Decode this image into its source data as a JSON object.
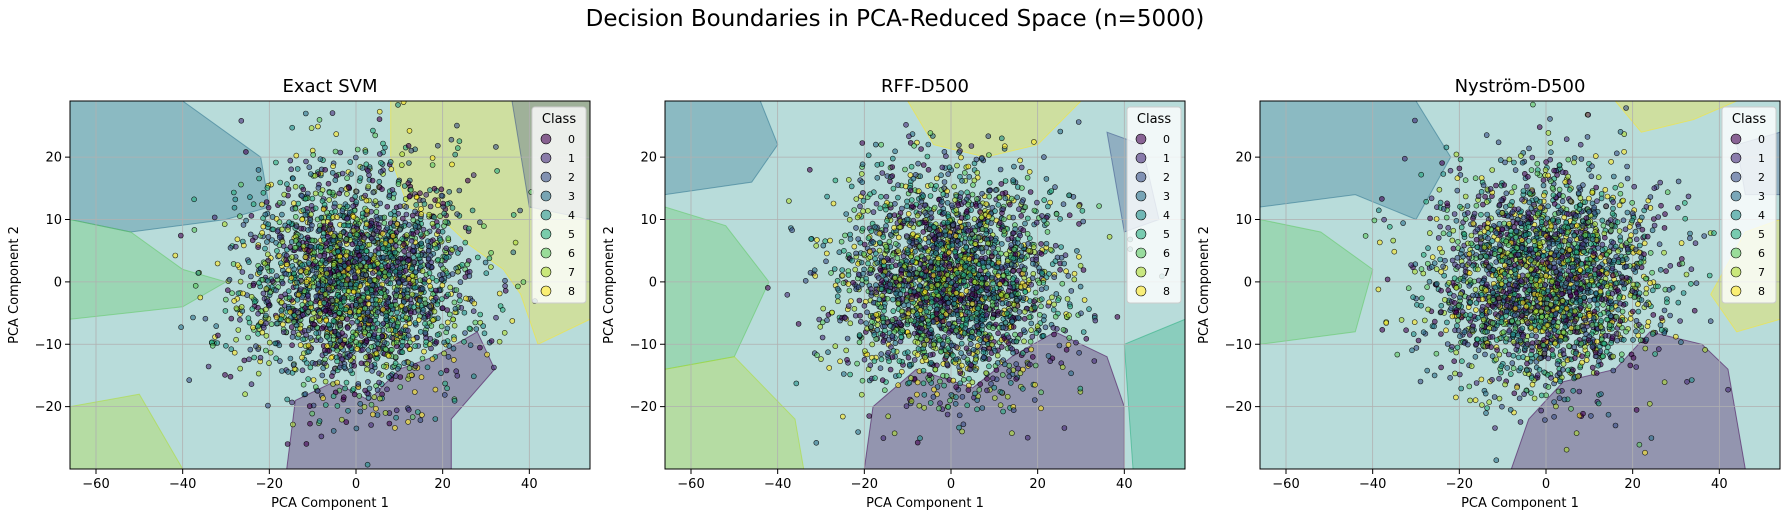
{
  "suptitle": "Decision Boundaries in PCA-Reduced Space (n=5000)",
  "class_colors": [
    "#440154",
    "#472d7b",
    "#3b528b",
    "#2c728e",
    "#21918c",
    "#28ae80",
    "#5ec962",
    "#addc30",
    "#fde725"
  ],
  "chart_data": [
    {
      "type": "scatter",
      "title": "Exact SVM",
      "xlabel": "PCA Component 1",
      "ylabel": "PCA Component 2",
      "xlim": [
        -66,
        54
      ],
      "ylim": [
        -30,
        29
      ],
      "xticks": [
        -60,
        -40,
        -20,
        0,
        20,
        40
      ],
      "yticks": [
        -20,
        -10,
        0,
        10,
        20
      ],
      "grid": true,
      "legend": {
        "title": "Class",
        "placement": "top-right",
        "entries": [
          "0",
          "1",
          "2",
          "3",
          "4",
          "5",
          "6",
          "7",
          "8"
        ]
      },
      "n_points": 5000,
      "point_distribution": {
        "center": [
          0,
          0
        ],
        "std": [
          13,
          9
        ]
      },
      "decision_regions": [
        {
          "class": 0,
          "polygon": [
            [
              -16,
              -30
            ],
            [
              -14,
              -19
            ],
            [
              -5,
              -16
            ],
            [
              3,
              -19
            ],
            [
              10,
              -14
            ],
            [
              18,
              -12
            ],
            [
              28,
              -8
            ],
            [
              32,
              -14
            ],
            [
              22,
              -22
            ],
            [
              22,
              -30
            ]
          ]
        },
        {
          "class": 8,
          "polygon": [
            [
              8,
              29
            ],
            [
              8,
              20
            ],
            [
              12,
              12
            ],
            [
              20,
              10
            ],
            [
              26,
              6
            ],
            [
              34,
              2
            ],
            [
              38,
              -2
            ],
            [
              42,
              -10
            ],
            [
              54,
              -6
            ],
            [
              54,
              29
            ]
          ]
        },
        {
          "class": 3,
          "polygon": [
            [
              -66,
              29
            ],
            [
              -66,
              10
            ],
            [
              -52,
              8
            ],
            [
              -30,
              10
            ],
            [
              -20,
              12
            ],
            [
              -22,
              20
            ],
            [
              -40,
              29
            ]
          ]
        },
        {
          "class": 2,
          "polygon": [
            [
              36,
              29
            ],
            [
              40,
              12
            ],
            [
              54,
              10
            ],
            [
              54,
              29
            ]
          ]
        },
        {
          "class": 6,
          "polygon": [
            [
              -66,
              10
            ],
            [
              -52,
              8
            ],
            [
              -40,
              2
            ],
            [
              -30,
              0
            ],
            [
              -40,
              -4
            ],
            [
              -66,
              -6
            ]
          ]
        },
        {
          "class": 7,
          "polygon": [
            [
              -66,
              -30
            ],
            [
              -66,
              -20
            ],
            [
              -50,
              -18
            ],
            [
              -40,
              -30
            ]
          ]
        }
      ]
    },
    {
      "type": "scatter",
      "title": "RFF-D500",
      "xlabel": "PCA Component 1",
      "ylabel": "PCA Component 2",
      "xlim": [
        -66,
        54
      ],
      "ylim": [
        -30,
        29
      ],
      "xticks": [
        -60,
        -40,
        -20,
        0,
        20,
        40
      ],
      "yticks": [
        -20,
        -10,
        0,
        10,
        20
      ],
      "grid": true,
      "legend": {
        "title": "Class",
        "placement": "top-right",
        "entries": [
          "0",
          "1",
          "2",
          "3",
          "4",
          "5",
          "6",
          "7",
          "8"
        ]
      },
      "n_points": 5000,
      "point_distribution": {
        "center": [
          0,
          0
        ],
        "std": [
          13,
          9
        ]
      },
      "decision_regions": [
        {
          "class": 0,
          "polygon": [
            [
              -20,
              -30
            ],
            [
              -18,
              -20
            ],
            [
              -8,
              -14
            ],
            [
              5,
              -17
            ],
            [
              14,
              -12
            ],
            [
              24,
              -8
            ],
            [
              36,
              -12
            ],
            [
              40,
              -20
            ],
            [
              40,
              -30
            ]
          ]
        },
        {
          "class": 8,
          "polygon": [
            [
              -10,
              29
            ],
            [
              -4,
              22
            ],
            [
              8,
              20
            ],
            [
              20,
              22
            ],
            [
              30,
              29
            ]
          ]
        },
        {
          "class": 6,
          "polygon": [
            [
              -66,
              12
            ],
            [
              -52,
              9
            ],
            [
              -42,
              0
            ],
            [
              -50,
              -12
            ],
            [
              -66,
              -14
            ]
          ]
        },
        {
          "class": 7,
          "polygon": [
            [
              -66,
              -14
            ],
            [
              -50,
              -12
            ],
            [
              -36,
              -22
            ],
            [
              -34,
              -30
            ],
            [
              -66,
              -30
            ]
          ]
        },
        {
          "class": 3,
          "polygon": [
            [
              -66,
              29
            ],
            [
              -66,
              14
            ],
            [
              -46,
              16
            ],
            [
              -40,
              22
            ],
            [
              -44,
              29
            ]
          ]
        },
        {
          "class": 2,
          "polygon": [
            [
              36,
              24
            ],
            [
              44,
              22
            ],
            [
              48,
              10
            ],
            [
              40,
              8
            ]
          ]
        },
        {
          "class": 5,
          "polygon": [
            [
              40,
              -10
            ],
            [
              54,
              -6
            ],
            [
              54,
              -30
            ],
            [
              42,
              -30
            ]
          ]
        }
      ]
    },
    {
      "type": "scatter",
      "title": "Nyström-D500",
      "xlabel": "PCA Component 1",
      "ylabel": "PCA Component 2",
      "xlim": [
        -66,
        54
      ],
      "ylim": [
        -30,
        29
      ],
      "xticks": [
        -60,
        -40,
        -20,
        0,
        20,
        40
      ],
      "yticks": [
        -20,
        -10,
        0,
        10,
        20
      ],
      "grid": true,
      "legend": {
        "title": "Class",
        "placement": "top-right",
        "entries": [
          "0",
          "1",
          "2",
          "3",
          "4",
          "5",
          "6",
          "7",
          "8"
        ]
      },
      "n_points": 5000,
      "point_distribution": {
        "center": [
          0,
          0
        ],
        "std": [
          13,
          9
        ]
      },
      "decision_regions": [
        {
          "class": 0,
          "polygon": [
            [
              -8,
              -30
            ],
            [
              -4,
              -22
            ],
            [
              4,
              -16
            ],
            [
              16,
              -14
            ],
            [
              24,
              -8
            ],
            [
              36,
              -10
            ],
            [
              42,
              -14
            ],
            [
              46,
              -30
            ]
          ]
        },
        {
          "class": 8,
          "polygon": [
            [
              16,
              29
            ],
            [
              22,
              24
            ],
            [
              34,
              26
            ],
            [
              44,
              29
            ]
          ]
        },
        {
          "class": 8,
          "polygon": [
            [
              38,
              -2
            ],
            [
              44,
              -8
            ],
            [
              54,
              -6
            ],
            [
              54,
              10
            ],
            [
              46,
              8
            ]
          ]
        },
        {
          "class": 3,
          "polygon": [
            [
              -66,
              29
            ],
            [
              -66,
              12
            ],
            [
              -44,
              14
            ],
            [
              -30,
              10
            ],
            [
              -22,
              20
            ],
            [
              -30,
              29
            ]
          ]
        },
        {
          "class": 6,
          "polygon": [
            [
              -66,
              10
            ],
            [
              -52,
              8
            ],
            [
              -40,
              2
            ],
            [
              -44,
              -8
            ],
            [
              -66,
              -10
            ]
          ]
        },
        {
          "class": 2,
          "polygon": [
            [
              44,
              22
            ],
            [
              54,
              24
            ],
            [
              54,
              14
            ],
            [
              46,
              14
            ]
          ]
        }
      ]
    }
  ]
}
